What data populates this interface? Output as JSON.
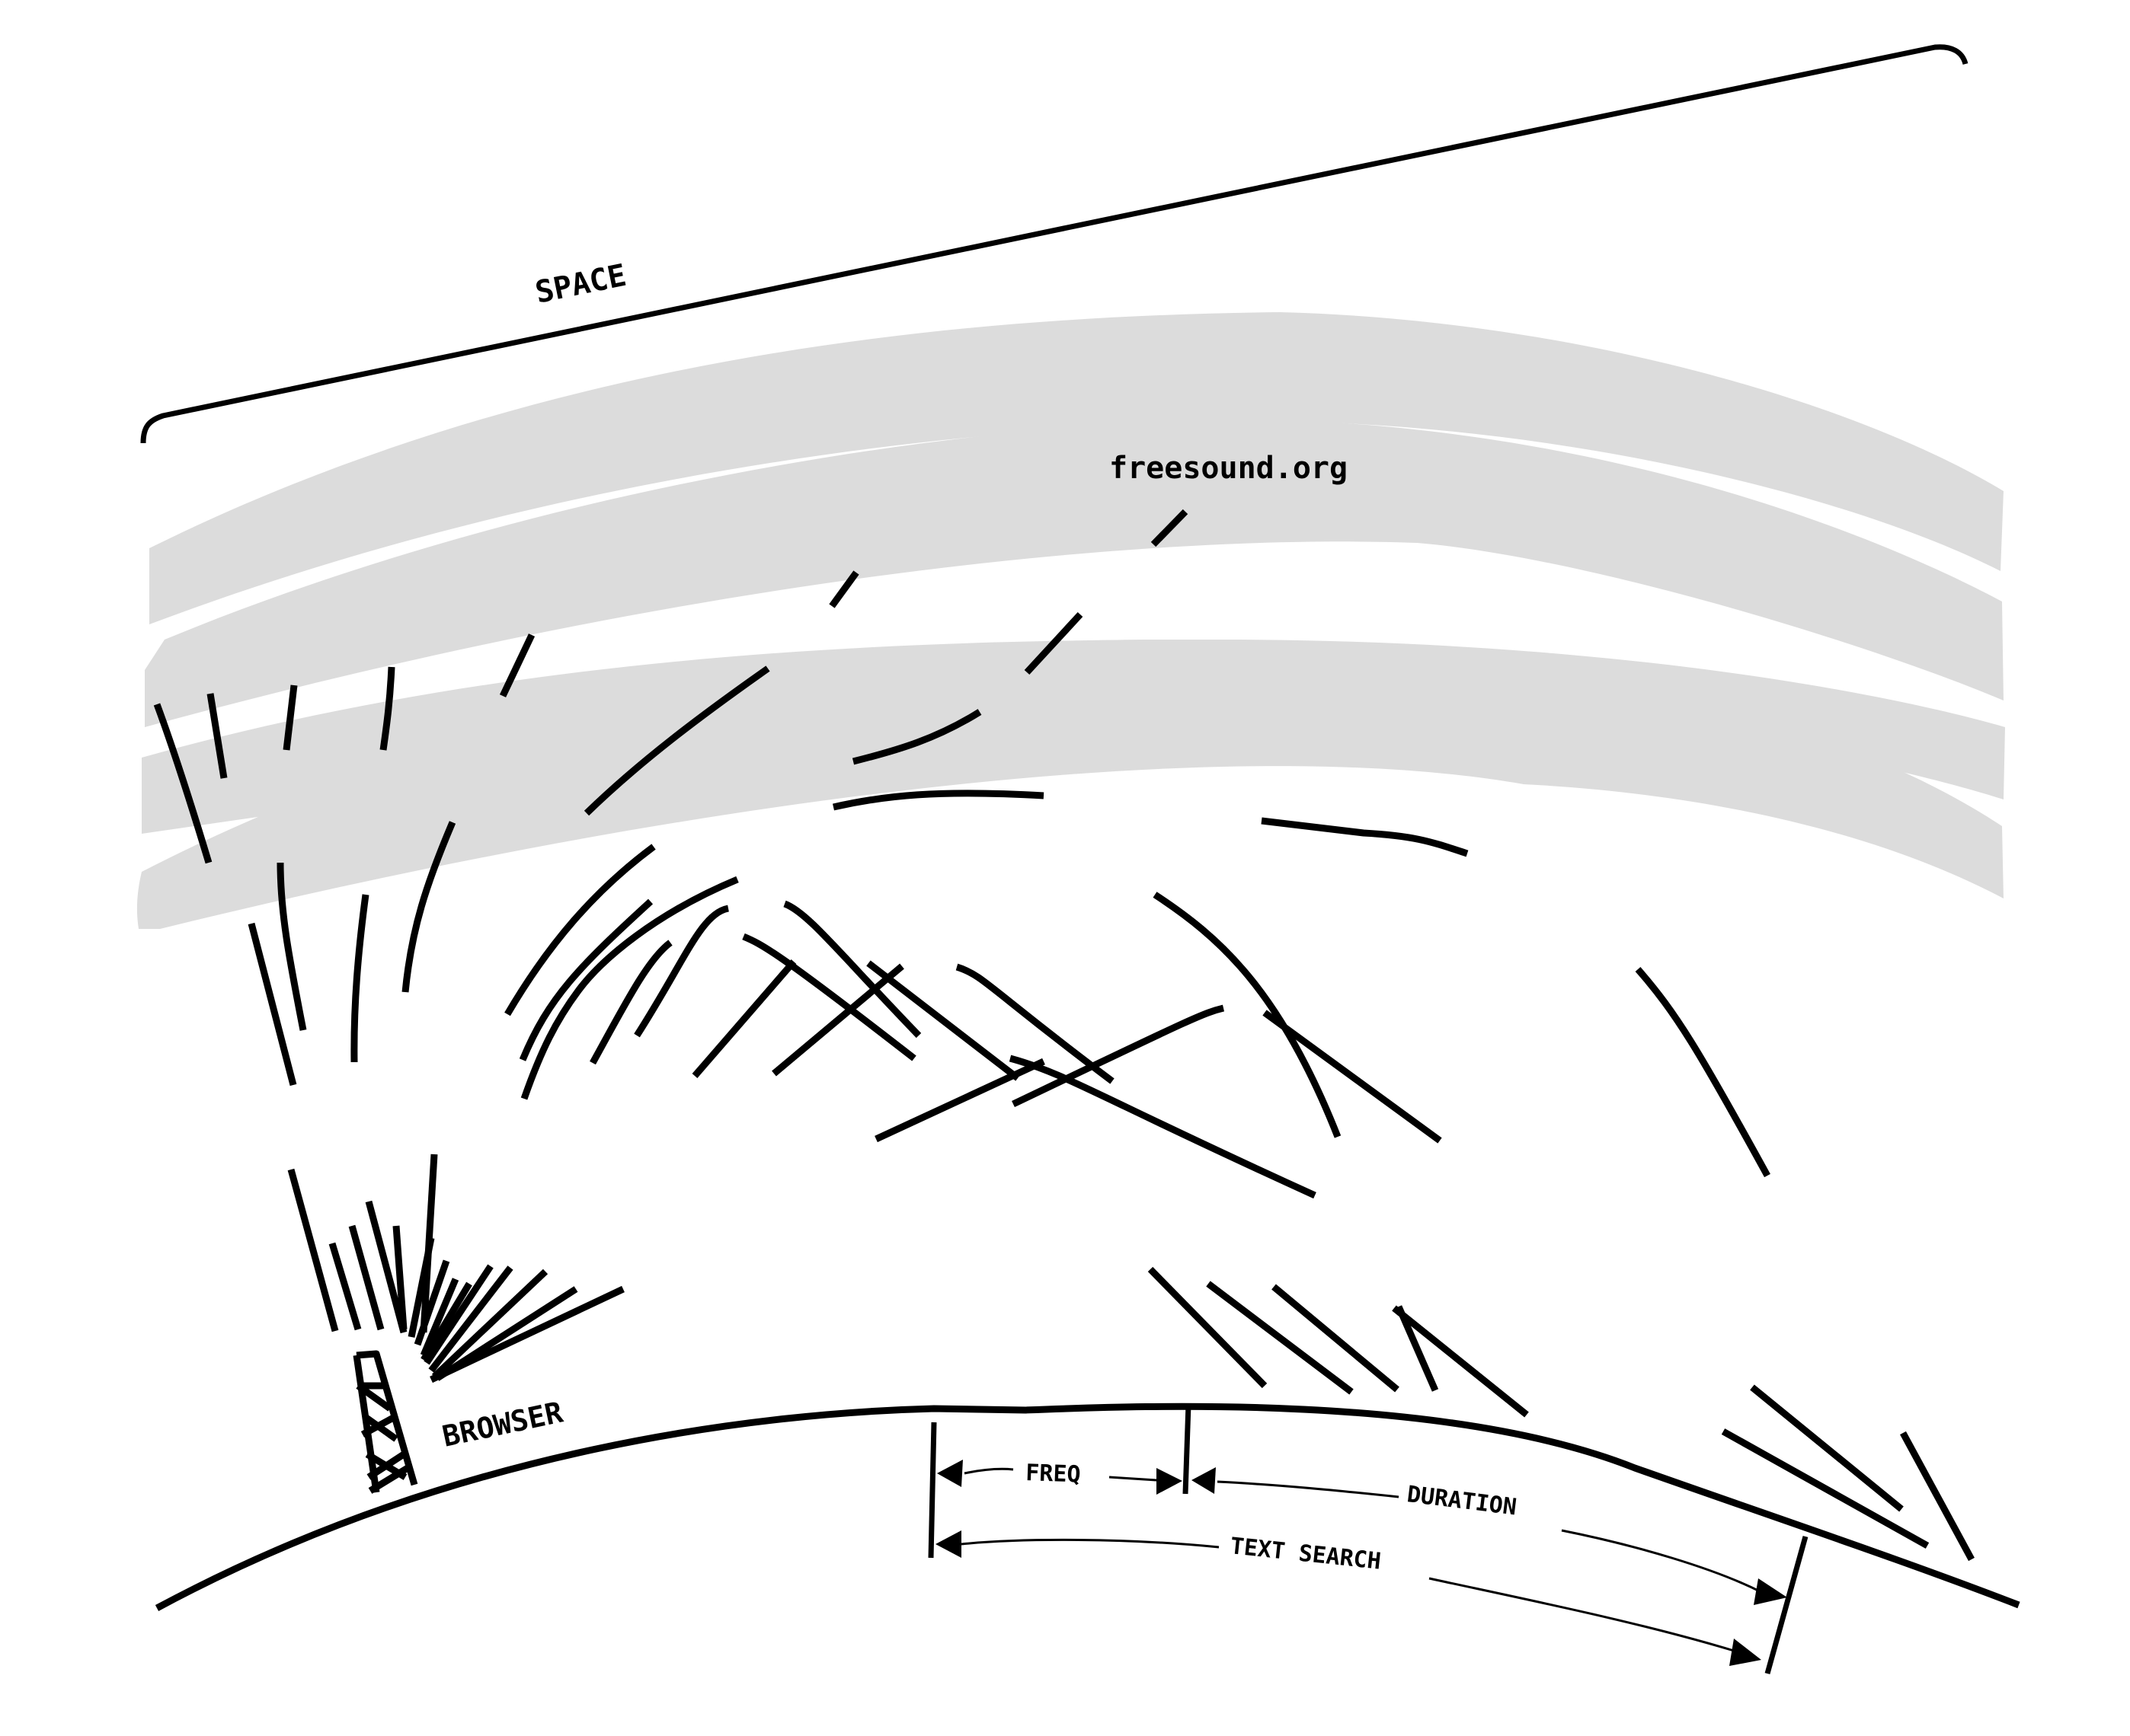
{
  "labels": {
    "space": "SPACE",
    "site": "freesound.org",
    "browser": "BROWSER",
    "freq": "FREQ",
    "duration": "DURATION",
    "text_search": "TEXT SEARCH"
  },
  "colors": {
    "band": "#dcdcdc",
    "stroke": "#000000",
    "background": "#ffffff"
  },
  "icons": {
    "tower": "radio-tower-icon"
  }
}
